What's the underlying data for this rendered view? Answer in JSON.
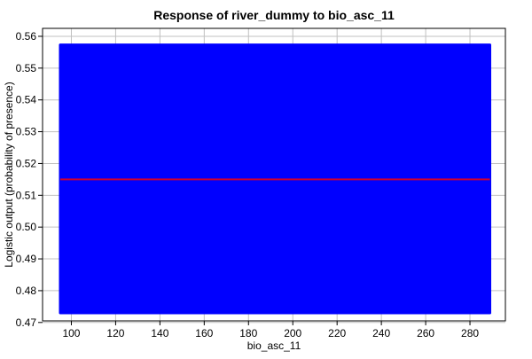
{
  "chart_data": {
    "type": "line",
    "title": "Response of river_dummy to bio_asc_11",
    "xlabel": "bio_asc_11",
    "ylabel": "Logistic output (probability of presence)",
    "xlim": [
      87,
      296
    ],
    "ylim": [
      0.4705,
      0.5625
    ],
    "x_ticks": [
      100,
      120,
      140,
      160,
      180,
      200,
      220,
      240,
      260,
      280
    ],
    "y_ticks": [
      0.47,
      0.48,
      0.49,
      0.5,
      0.51,
      0.52,
      0.53,
      0.54,
      0.55,
      0.56
    ],
    "grid": true,
    "band": {
      "x": [
        95,
        289
      ],
      "ymin": 0.473,
      "ymax": 0.5573
    },
    "series": [
      {
        "name": "",
        "x": [
          95,
          289
        ],
        "y": [
          0.515,
          0.515
        ]
      }
    ],
    "colors": {
      "band": "#0000ff",
      "line": "#cc0033",
      "grid": "#c0c0c0"
    }
  }
}
